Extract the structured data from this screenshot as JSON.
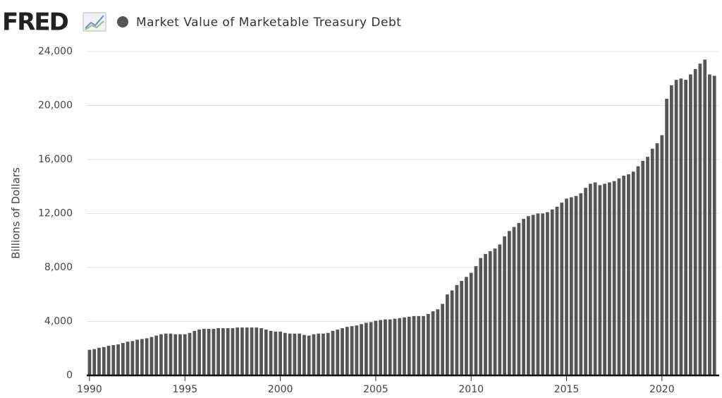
{
  "logo": "FRED",
  "chart_data": {
    "type": "bar",
    "title": "Market Value of Marketable Treasury Debt",
    "y_label": "Billions of Dollars",
    "series": [
      {
        "name": "Market Value of Marketable Treasury Debt",
        "color": "#555555",
        "values": [
          1900,
          1950,
          2050,
          2100,
          2200,
          2250,
          2300,
          2400,
          2500,
          2550,
          2650,
          2700,
          2750,
          2850,
          2950,
          3050,
          3100,
          3100,
          3050,
          3050,
          3050,
          3150,
          3300,
          3400,
          3450,
          3450,
          3450,
          3500,
          3500,
          3500,
          3500,
          3550,
          3550,
          3550,
          3550,
          3550,
          3500,
          3400,
          3300,
          3250,
          3250,
          3150,
          3100,
          3100,
          3100,
          3000,
          2950,
          3050,
          3100,
          3100,
          3150,
          3300,
          3400,
          3500,
          3600,
          3650,
          3700,
          3800,
          3900,
          3950,
          4050,
          4100,
          4150,
          4150,
          4200,
          4250,
          4300,
          4350,
          4400,
          4400,
          4400,
          4550,
          4750,
          4900,
          5300,
          6000,
          6300,
          6700,
          7000,
          7300,
          7600,
          8100,
          8700,
          9000,
          9200,
          9400,
          9700,
          10300,
          10700,
          11000,
          11300,
          11600,
          11800,
          11900,
          12000,
          12000,
          12100,
          12300,
          12500,
          12800,
          13100,
          13200,
          13300,
          13500,
          13900,
          14200,
          14300,
          14100,
          14200,
          14300,
          14400,
          14600,
          14800,
          14900,
          15100,
          15500,
          15900,
          16200,
          16800,
          17200,
          17800,
          20500,
          21500,
          21900,
          22000,
          21900,
          22300,
          22700,
          23100,
          23400,
          22300,
          22200
        ]
      }
    ],
    "x": [
      1990,
      1990.25,
      1990.5,
      1990.75,
      1991,
      1991.25,
      1991.5,
      1991.75,
      1992,
      1992.25,
      1992.5,
      1992.75,
      1993,
      1993.25,
      1993.5,
      1993.75,
      1994,
      1994.25,
      1994.5,
      1994.75,
      1995,
      1995.25,
      1995.5,
      1995.75,
      1996,
      1996.25,
      1996.5,
      1996.75,
      1997,
      1997.25,
      1997.5,
      1997.75,
      1998,
      1998.25,
      1998.5,
      1998.75,
      1999,
      1999.25,
      1999.5,
      1999.75,
      2000,
      2000.25,
      2000.5,
      2000.75,
      2001,
      2001.25,
      2001.5,
      2001.75,
      2002,
      2002.25,
      2002.5,
      2002.75,
      2003,
      2003.25,
      2003.5,
      2003.75,
      2004,
      2004.25,
      2004.5,
      2004.75,
      2005,
      2005.25,
      2005.5,
      2005.75,
      2006,
      2006.25,
      2006.5,
      2006.75,
      2007,
      2007.25,
      2007.5,
      2007.75,
      2008,
      2008.25,
      2008.5,
      2008.75,
      2009,
      2009.25,
      2009.5,
      2009.75,
      2010,
      2010.25,
      2010.5,
      2010.75,
      2011,
      2011.25,
      2011.5,
      2011.75,
      2012,
      2012.25,
      2012.5,
      2012.75,
      2013,
      2013.25,
      2013.5,
      2013.75,
      2014,
      2014.25,
      2014.5,
      2014.75,
      2015,
      2015.25,
      2015.5,
      2015.75,
      2016,
      2016.25,
      2016.5,
      2016.75,
      2017,
      2017.25,
      2017.5,
      2017.75,
      2018,
      2018.25,
      2018.5,
      2018.75,
      2019,
      2019.25,
      2019.5,
      2019.75,
      2020,
      2020.25,
      2020.5,
      2020.75,
      2021,
      2021.25,
      2021.5,
      2021.75,
      2022,
      2022.25,
      2022.5,
      2022.75
    ],
    "xlim": [
      1990,
      2023
    ],
    "xticks": [
      1990,
      1995,
      2000,
      2005,
      2010,
      2015,
      2020
    ],
    "ylim": [
      0,
      24000
    ],
    "yticks": [
      0,
      {
        "value": 4000,
        "label": "4,000"
      },
      {
        "value": 8000,
        "label": "8,000"
      },
      {
        "value": 12000,
        "label": "12,000"
      },
      {
        "value": 16000,
        "label": "16,000"
      },
      {
        "value": 20000,
        "label": "20,000"
      },
      {
        "value": 24000,
        "label": "24,000"
      }
    ],
    "grid": true
  }
}
